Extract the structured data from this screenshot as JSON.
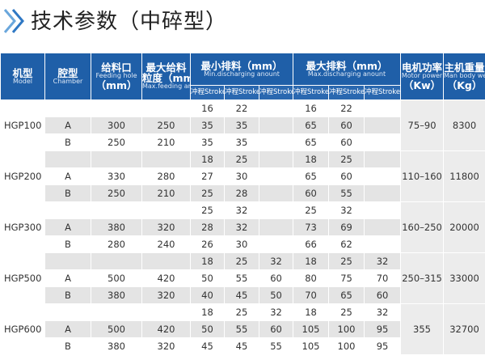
{
  "title": "技术参数（中碎型）",
  "header": {
    "model": {
      "cn": "机型",
      "en": "Model"
    },
    "chamber": {
      "cn": "腔型",
      "en": "Chamber"
    },
    "feed": {
      "cn": "给料口",
      "en": "Feeding hole",
      "unit": "（mm）"
    },
    "max_feed": {
      "cn": "最大给料",
      "cn2": "粒度（mm）",
      "en": "Max.feeding amount Finesse"
    },
    "min_discharge": {
      "cn": "最小排料（mm）",
      "en": "Min.discharging anount",
      "strokes": [
        "冲程Stroke",
        "冲程Stroke",
        "冲程Stroke"
      ]
    },
    "max_discharge": {
      "cn": "最大排料（mm）",
      "en": "Max.discharging anount",
      "strokes": [
        "冲程Stroke",
        "冲程Stroke",
        "冲程Stroke"
      ]
    },
    "motor": {
      "cn": "电机功率",
      "en": "Motor power",
      "unit": "（Kw）"
    },
    "weight": {
      "cn": "主机重量",
      "en": "Man body weight",
      "unit": "（Kg）"
    }
  },
  "models": [
    {
      "model": "HGP100",
      "motor": "75–90",
      "weight": "8300",
      "rows": [
        {
          "min": [
            "16",
            "22"
          ],
          "max": [
            "16",
            "22"
          ]
        },
        {
          "chamber": "A",
          "feed": "300",
          "max_feed": "250",
          "min": [
            "35",
            "35"
          ],
          "max": [
            "65",
            "60"
          ]
        },
        {
          "chamber": "B",
          "feed": "250",
          "max_feed": "210",
          "min": [
            "35",
            "35"
          ],
          "max": [
            "65",
            "60"
          ]
        }
      ]
    },
    {
      "model": "HGP200",
      "motor": "110–160",
      "weight": "11800",
      "rows": [
        {
          "min": [
            "18",
            "25"
          ],
          "max": [
            "18",
            "25"
          ]
        },
        {
          "chamber": "A",
          "feed": "330",
          "max_feed": "280",
          "min": [
            "27",
            "30"
          ],
          "max": [
            "65",
            "60"
          ]
        },
        {
          "chamber": "B",
          "feed": "250",
          "max_feed": "210",
          "min": [
            "25",
            "28"
          ],
          "max": [
            "60",
            "55"
          ]
        }
      ]
    },
    {
      "model": "HGP300",
      "motor": "160–250",
      "weight": "20000",
      "rows": [
        {
          "min": [
            "25",
            "32"
          ],
          "max": [
            "25",
            "32"
          ]
        },
        {
          "chamber": "A",
          "feed": "380",
          "max_feed": "320",
          "min": [
            "28",
            "32"
          ],
          "max": [
            "73",
            "69"
          ]
        },
        {
          "chamber": "B",
          "feed": "280",
          "max_feed": "240",
          "min": [
            "26",
            "30"
          ],
          "max": [
            "66",
            "62"
          ]
        }
      ]
    },
    {
      "model": "HGP500",
      "motor": "250–315",
      "weight": "33000",
      "rows": [
        {
          "min": [
            "18",
            "25",
            "32"
          ],
          "max": [
            "18",
            "25",
            "32"
          ]
        },
        {
          "chamber": "A",
          "feed": "500",
          "max_feed": "420",
          "min": [
            "50",
            "55",
            "60"
          ],
          "max": [
            "80",
            "75",
            "70"
          ]
        },
        {
          "chamber": "B",
          "feed": "380",
          "max_feed": "320",
          "min": [
            "40",
            "45",
            "50"
          ],
          "max": [
            "70",
            "65",
            "60"
          ]
        }
      ]
    },
    {
      "model": "HGP600",
      "motor": "355",
      "weight": "32700",
      "rows": [
        {
          "min": [
            "18",
            "25",
            "32"
          ],
          "max": [
            "18",
            "25",
            "32"
          ]
        },
        {
          "chamber": "A",
          "feed": "500",
          "max_feed": "420",
          "min": [
            "50",
            "55",
            "60"
          ],
          "max": [
            "105",
            "100",
            "95"
          ]
        },
        {
          "chamber": "B",
          "feed": "380",
          "max_feed": "320",
          "min": [
            "45",
            "45",
            "55"
          ],
          "max": [
            "105",
            "100",
            "95"
          ]
        }
      ]
    }
  ]
}
